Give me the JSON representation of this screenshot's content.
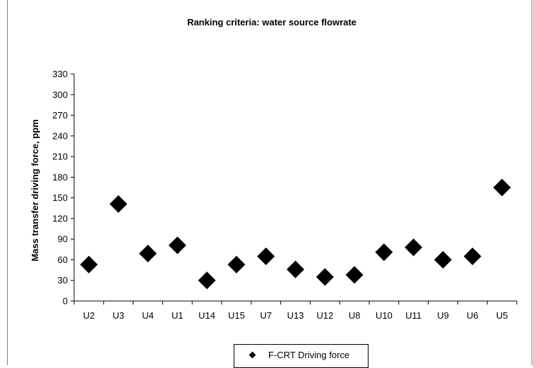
{
  "chart_data": {
    "type": "scatter",
    "title": "Ranking criteria: water source flowrate",
    "xlabel": "",
    "ylabel": "Mass transfer driving force, ppm",
    "categories": [
      "U2",
      "U3",
      "U4",
      "U1",
      "U14",
      "U15",
      "U7",
      "U13",
      "U12",
      "U8",
      "U10",
      "U11",
      "U9",
      "U6",
      "U5"
    ],
    "ylim": [
      0,
      330
    ],
    "yticks": [
      0,
      30,
      60,
      90,
      120,
      150,
      180,
      210,
      240,
      270,
      300,
      330
    ],
    "grid": false,
    "legend_position": "bottom",
    "series": [
      {
        "name": "F-CRT Driving force",
        "marker": "diamond",
        "color": "#000000",
        "values": [
          53,
          141,
          69,
          81,
          30,
          53,
          65,
          46,
          35,
          38,
          71,
          78,
          60,
          65,
          165
        ]
      }
    ]
  }
}
